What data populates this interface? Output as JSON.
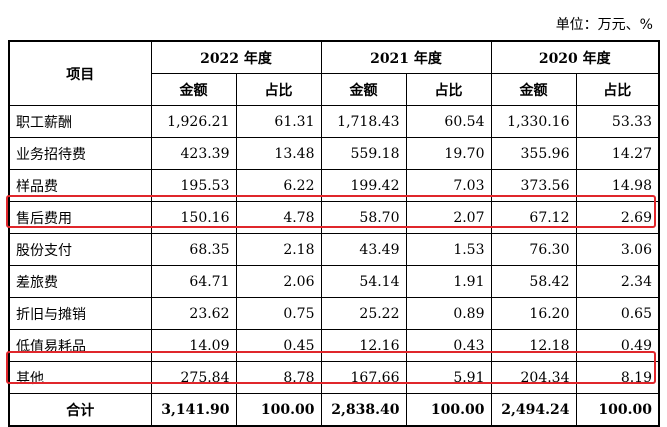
{
  "unit_label": "单位：万元、%",
  "header": {
    "item": "项目",
    "years": [
      "2022 年度",
      "2021 年度",
      "2020 年度"
    ],
    "amount": "金额",
    "ratio": "占比"
  },
  "rows": [
    {
      "label": "职工薪酬",
      "values": [
        "1,926.21",
        "61.31",
        "1,718.43",
        "60.54",
        "1,330.16",
        "53.33"
      ]
    },
    {
      "label": "业务招待费",
      "values": [
        "423.39",
        "13.48",
        "559.18",
        "19.70",
        "355.96",
        "14.27"
      ]
    },
    {
      "label": "样品费",
      "values": [
        "195.53",
        "6.22",
        "199.42",
        "7.03",
        "373.56",
        "14.98"
      ]
    },
    {
      "label": "售后费用",
      "values": [
        "150.16",
        "4.78",
        "58.70",
        "2.07",
        "67.12",
        "2.69"
      ]
    },
    {
      "label": "股份支付",
      "values": [
        "68.35",
        "2.18",
        "43.49",
        "1.53",
        "76.30",
        "3.06"
      ]
    },
    {
      "label": "差旅费",
      "values": [
        "64.71",
        "2.06",
        "54.14",
        "1.91",
        "58.42",
        "2.34"
      ]
    },
    {
      "label": "折旧与摊销",
      "values": [
        "23.62",
        "0.75",
        "25.22",
        "0.89",
        "16.20",
        "0.65"
      ]
    },
    {
      "label": "低值易耗品",
      "values": [
        "14.09",
        "0.45",
        "12.16",
        "0.43",
        "12.18",
        "0.49"
      ]
    },
    {
      "label": "其他",
      "values": [
        "275.84",
        "8.78",
        "167.66",
        "5.91",
        "204.34",
        "8.19"
      ]
    }
  ],
  "total": {
    "label": "合计",
    "values": [
      "3,141.90",
      "100.00",
      "2,838.40",
      "100.00",
      "2,494.24",
      "100.00"
    ]
  },
  "highlight_color": "#e0262b"
}
